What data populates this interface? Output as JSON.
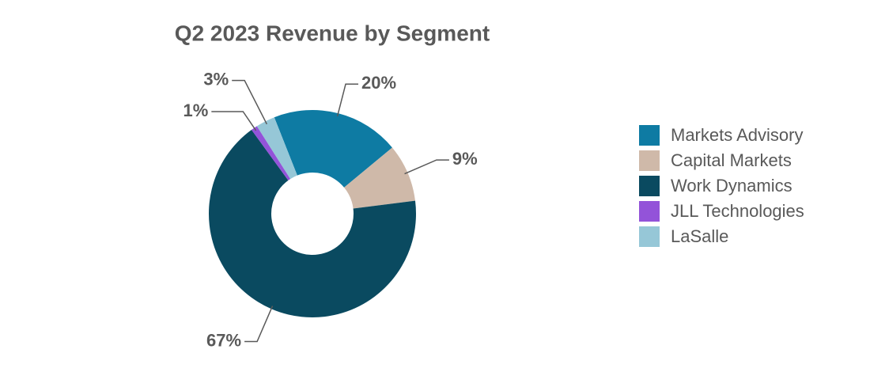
{
  "chart_data": {
    "type": "donut",
    "title": "Q2 2023 Revenue by Segment",
    "categories": [
      "Markets Advisory",
      "Capital Markets",
      "Work Dynamics",
      "JLL Technologies",
      "LaSalle"
    ],
    "values": [
      20,
      9,
      67,
      1,
      3
    ],
    "value_labels": [
      "20%",
      "9%",
      "67%",
      "1%",
      "3%"
    ],
    "colors": [
      "#0e7ba3",
      "#cfb9a9",
      "#0a4a60",
      "#9353d9",
      "#96c7d7"
    ],
    "legend": "right"
  }
}
